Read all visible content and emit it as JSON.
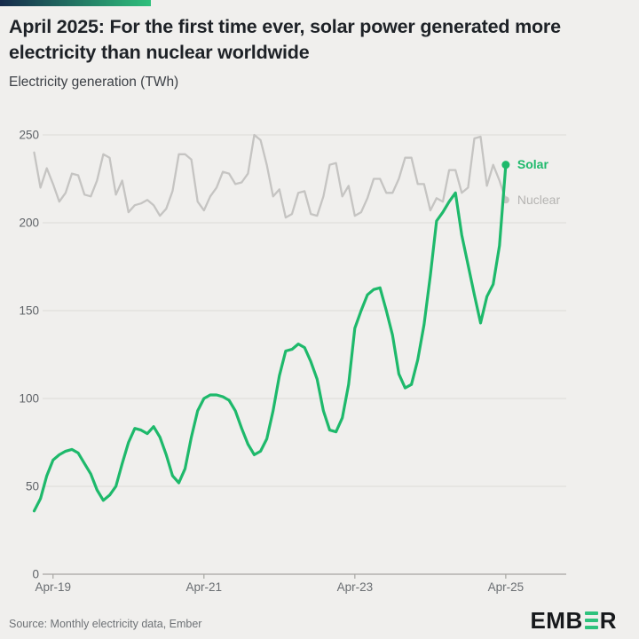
{
  "header": {
    "title": "April 2025: For the first time ever, solar power generated more electricity than nuclear worldwide",
    "subtitle": "Electricity generation (TWh)"
  },
  "footer": {
    "source": "Source: Monthly electricity data, Ember",
    "logo_prefix": "EMB",
    "logo_suffix": "R"
  },
  "colors": {
    "background": "#f0efed",
    "accent_bar_start": "#15294a",
    "accent_bar_end": "#2fc07c",
    "solar": "#1eb96b",
    "nuclear_line": "#c5c4c2",
    "nuclear_label": "#b5b4b2",
    "grid": "#dcdbd8",
    "axis": "#a6a5a2",
    "axis_text": "#5f6368",
    "logo_green": "#2ec27d"
  },
  "chart_data": {
    "type": "line",
    "title": "April 2025: For the first time ever, solar power generated more electricity than nuclear worldwide",
    "ylabel": "Electricity generation (TWh)",
    "xlabel": "",
    "ylim": [
      0,
      250
    ],
    "yticks": [
      0,
      50,
      100,
      150,
      200,
      250
    ],
    "xtick_labels": [
      "Apr-19",
      "Apr-21",
      "Apr-23",
      "Apr-25"
    ],
    "xtick_month_indices": [
      3,
      27,
      51,
      75
    ],
    "x_range_months": [
      "Jan-2019",
      "Apr-2025"
    ],
    "x_interval": "monthly",
    "grid": "horizontal",
    "legend_position": "line-end-labels",
    "series": [
      {
        "name": "Solar",
        "color": "#1eb96b",
        "values": [
          36,
          43,
          56,
          65,
          68,
          70,
          71,
          69,
          63,
          57,
          48,
          42,
          45,
          50,
          63,
          75,
          83,
          82,
          80,
          84,
          78,
          68,
          56,
          52,
          60,
          78,
          93,
          100,
          102,
          102,
          101,
          99,
          93,
          83,
          74,
          68,
          70,
          77,
          93,
          113,
          127,
          128,
          131,
          129,
          121,
          111,
          93,
          82,
          81,
          89,
          108,
          140,
          150,
          159,
          162,
          163,
          150,
          136,
          114,
          106,
          108,
          122,
          142,
          170,
          201,
          206,
          212,
          217,
          193,
          176,
          159,
          143,
          158,
          165,
          187,
          233
        ]
      },
      {
        "name": "Nuclear",
        "color": "#c5c4c2",
        "values": [
          240,
          220,
          231,
          222,
          212,
          217,
          228,
          227,
          216,
          215,
          224,
          239,
          237,
          216,
          224,
          206,
          210,
          211,
          213,
          210,
          204,
          208,
          218,
          239,
          239,
          236,
          212,
          207,
          215,
          220,
          229,
          228,
          222,
          223,
          228,
          250,
          247,
          233,
          215,
          219,
          203,
          205,
          217,
          218,
          205,
          204,
          215,
          233,
          234,
          215,
          221,
          204,
          206,
          214,
          225,
          225,
          217,
          217,
          225,
          237,
          237,
          222,
          222,
          207,
          214,
          212,
          230,
          230,
          217,
          220,
          248,
          249,
          221,
          233,
          224,
          213
        ]
      }
    ]
  }
}
